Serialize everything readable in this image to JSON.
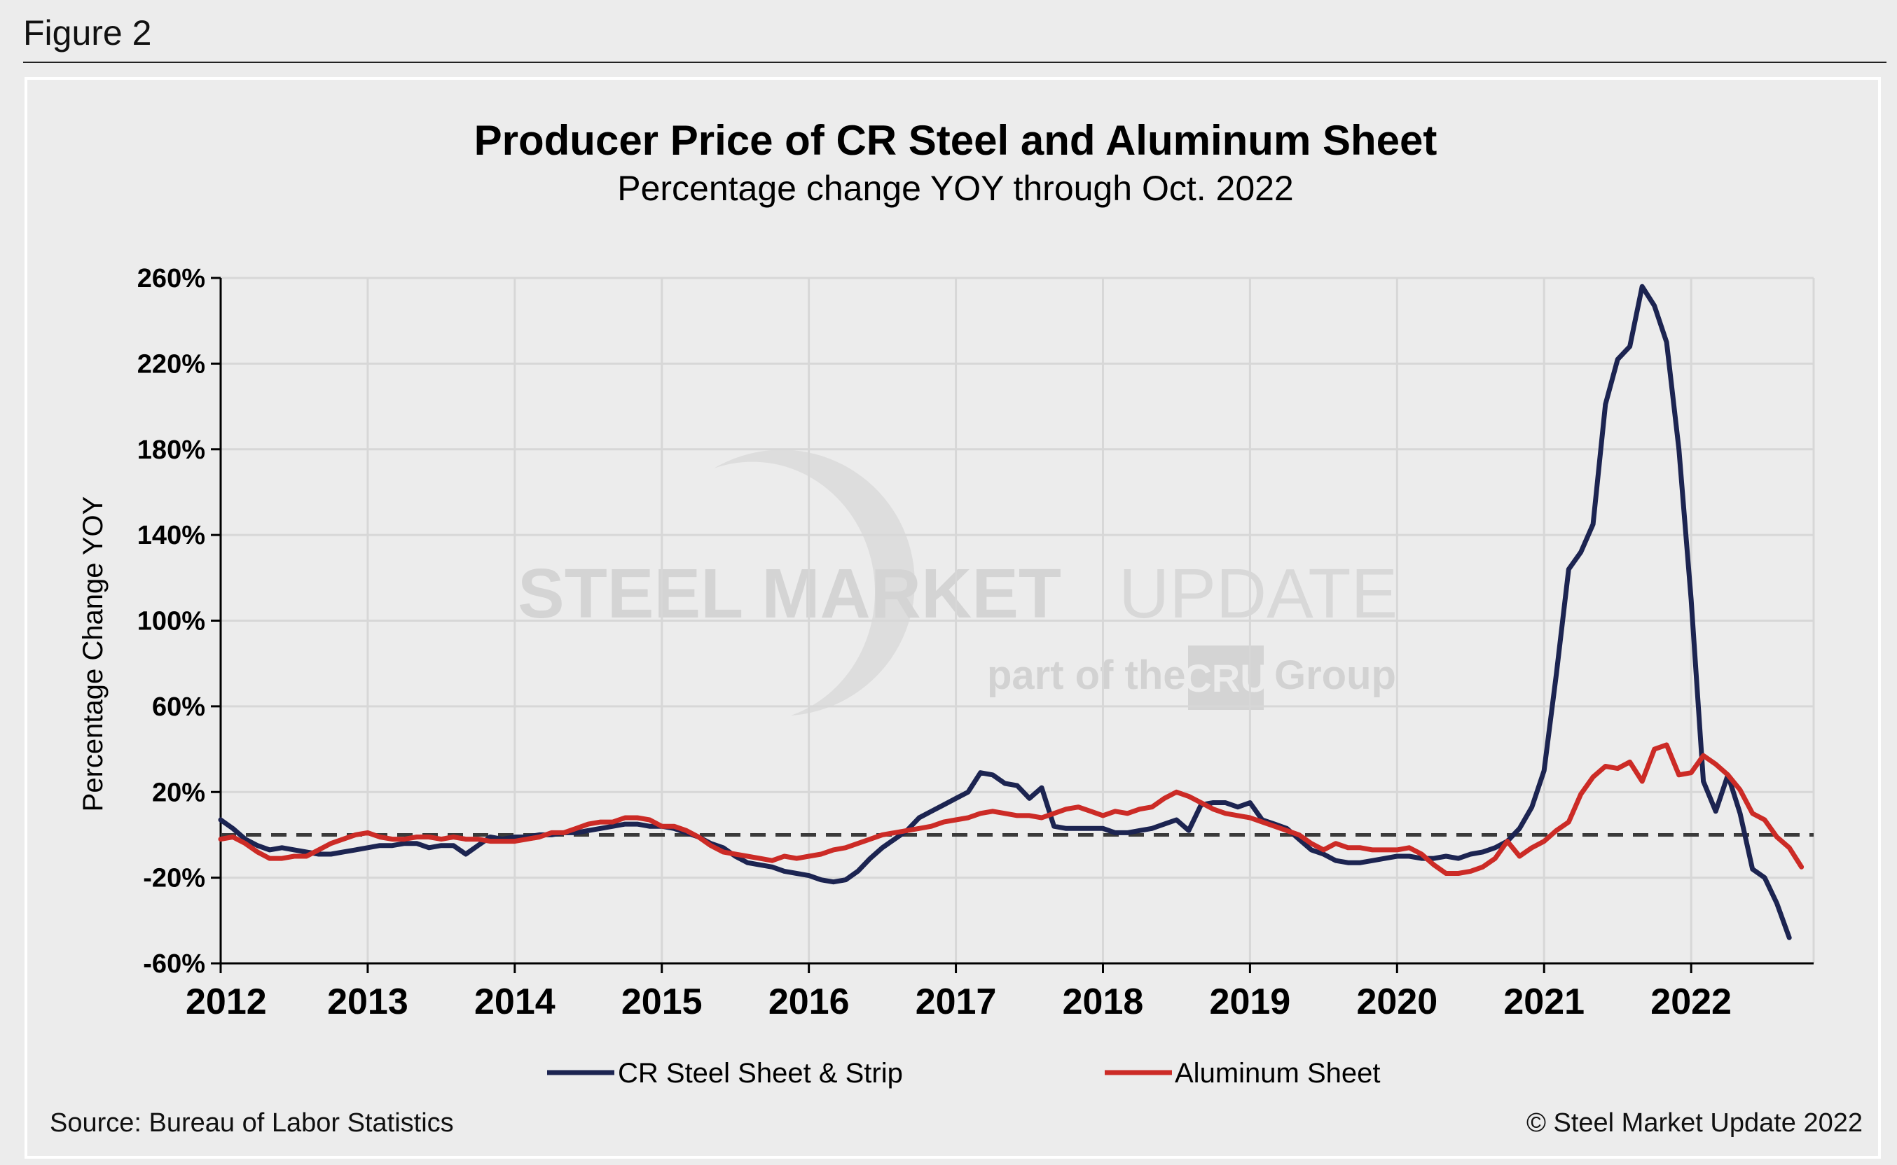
{
  "figure_label": "Figure 2",
  "watermark": {
    "brand_bold": "STEEL MARKET",
    "brand_light": "UPDATE",
    "tagline_pre": "part of the",
    "tagline_logo": "CRU",
    "tagline_post": "Group"
  },
  "source_text": "Source: Bureau of Labor Statistics",
  "copyright_text": "© Steel Market Update 2022",
  "colors": {
    "steel": "#1c2451",
    "aluminum": "#cc2b26",
    "zero_line": "#3a3a3a"
  },
  "chart_data": {
    "type": "line",
    "title": "Producer Price of CR Steel and Aluminum Sheet",
    "subtitle": "Percentage change YOY through Oct. 2022",
    "ylabel": "Percentage Change YOY",
    "xlabel": "",
    "x_tick_labels": [
      "2012",
      "2013",
      "2014",
      "2015",
      "2016",
      "2017",
      "2018",
      "2019",
      "2020",
      "2021",
      "2022"
    ],
    "y_ticks": [
      260,
      220,
      180,
      140,
      100,
      60,
      20,
      -20,
      -60
    ],
    "y_tick_labels": [
      "260%",
      "220%",
      "180%",
      "140%",
      "100%",
      "60%",
      "20%",
      "-20%",
      "-60%"
    ],
    "ylim": [
      -60,
      260
    ],
    "x_range": [
      2012.0,
      2022.833
    ],
    "reference_line": 0,
    "grid": true,
    "legend_position": "bottom",
    "series": [
      {
        "name": "CR Steel Sheet & Strip",
        "points": [
          [
            2012.0,
            7
          ],
          [
            2012.083,
            3
          ],
          [
            2012.167,
            -2
          ],
          [
            2012.25,
            -5
          ],
          [
            2012.333,
            -7
          ],
          [
            2012.417,
            -6
          ],
          [
            2012.5,
            -7
          ],
          [
            2012.583,
            -8
          ],
          [
            2012.667,
            -9
          ],
          [
            2012.75,
            -9
          ],
          [
            2012.833,
            -8
          ],
          [
            2012.917,
            -7
          ],
          [
            2013.0,
            -6
          ],
          [
            2013.083,
            -5
          ],
          [
            2013.167,
            -5
          ],
          [
            2013.25,
            -4
          ],
          [
            2013.333,
            -4
          ],
          [
            2013.417,
            -6
          ],
          [
            2013.5,
            -5
          ],
          [
            2013.583,
            -5
          ],
          [
            2013.667,
            -9
          ],
          [
            2013.75,
            -5
          ],
          [
            2013.833,
            -1
          ],
          [
            2013.917,
            -2
          ],
          [
            2014.0,
            -1
          ],
          [
            2014.083,
            -1
          ],
          [
            2014.167,
            0
          ],
          [
            2014.25,
            0
          ],
          [
            2014.333,
            1
          ],
          [
            2014.417,
            1
          ],
          [
            2014.5,
            2
          ],
          [
            2014.583,
            3
          ],
          [
            2014.667,
            4
          ],
          [
            2014.75,
            5
          ],
          [
            2014.833,
            5
          ],
          [
            2014.917,
            4
          ],
          [
            2015.0,
            4
          ],
          [
            2015.083,
            3
          ],
          [
            2015.167,
            1
          ],
          [
            2015.25,
            -1
          ],
          [
            2015.333,
            -4
          ],
          [
            2015.417,
            -6
          ],
          [
            2015.5,
            -10
          ],
          [
            2015.583,
            -13
          ],
          [
            2015.667,
            -14
          ],
          [
            2015.75,
            -15
          ],
          [
            2015.833,
            -17
          ],
          [
            2015.917,
            -18
          ],
          [
            2016.0,
            -19
          ],
          [
            2016.083,
            -21
          ],
          [
            2016.167,
            -22
          ],
          [
            2016.25,
            -21
          ],
          [
            2016.333,
            -17
          ],
          [
            2016.417,
            -11
          ],
          [
            2016.5,
            -6
          ],
          [
            2016.583,
            -2
          ],
          [
            2016.667,
            2
          ],
          [
            2016.75,
            8
          ],
          [
            2016.833,
            11
          ],
          [
            2016.917,
            14
          ],
          [
            2017.0,
            17
          ],
          [
            2017.083,
            20
          ],
          [
            2017.167,
            29
          ],
          [
            2017.25,
            28
          ],
          [
            2017.333,
            24
          ],
          [
            2017.417,
            23
          ],
          [
            2017.5,
            17
          ],
          [
            2017.583,
            22
          ],
          [
            2017.667,
            4
          ],
          [
            2017.75,
            3
          ],
          [
            2017.833,
            3
          ],
          [
            2017.917,
            3
          ],
          [
            2018.0,
            3
          ],
          [
            2018.083,
            1
          ],
          [
            2018.167,
            1
          ],
          [
            2018.25,
            2
          ],
          [
            2018.333,
            3
          ],
          [
            2018.417,
            5
          ],
          [
            2018.5,
            7
          ],
          [
            2018.583,
            2
          ],
          [
            2018.667,
            14
          ],
          [
            2018.75,
            15
          ],
          [
            2018.833,
            15
          ],
          [
            2018.917,
            13
          ],
          [
            2019.0,
            15
          ],
          [
            2019.083,
            7
          ],
          [
            2019.167,
            5
          ],
          [
            2019.25,
            3
          ],
          [
            2019.333,
            -2
          ],
          [
            2019.417,
            -7
          ],
          [
            2019.5,
            -9
          ],
          [
            2019.583,
            -12
          ],
          [
            2019.667,
            -13
          ],
          [
            2019.75,
            -13
          ],
          [
            2019.833,
            -12
          ],
          [
            2019.917,
            -11
          ],
          [
            2020.0,
            -10
          ],
          [
            2020.083,
            -10
          ],
          [
            2020.167,
            -11
          ],
          [
            2020.25,
            -11
          ],
          [
            2020.333,
            -10
          ],
          [
            2020.417,
            -11
          ],
          [
            2020.5,
            -9
          ],
          [
            2020.583,
            -8
          ],
          [
            2020.667,
            -6
          ],
          [
            2020.75,
            -3
          ],
          [
            2020.833,
            3
          ],
          [
            2020.917,
            13
          ],
          [
            2021.0,
            30
          ],
          [
            2021.083,
            75
          ],
          [
            2021.167,
            124
          ],
          [
            2021.25,
            132
          ],
          [
            2021.333,
            145
          ],
          [
            2021.417,
            201
          ],
          [
            2021.5,
            222
          ],
          [
            2021.583,
            228
          ],
          [
            2021.667,
            256
          ],
          [
            2021.75,
            247
          ],
          [
            2021.833,
            230
          ],
          [
            2021.917,
            180
          ],
          [
            2022.0,
            110
          ],
          [
            2022.083,
            25
          ],
          [
            2022.167,
            11
          ],
          [
            2022.25,
            28
          ],
          [
            2022.333,
            10
          ],
          [
            2022.417,
            -16
          ],
          [
            2022.5,
            -20
          ],
          [
            2022.583,
            -32
          ],
          [
            2022.667,
            -48
          ]
        ]
      },
      {
        "name": "Aluminum Sheet",
        "points": [
          [
            2012.0,
            -2
          ],
          [
            2012.083,
            -1
          ],
          [
            2012.167,
            -4
          ],
          [
            2012.25,
            -8
          ],
          [
            2012.333,
            -11
          ],
          [
            2012.417,
            -11
          ],
          [
            2012.5,
            -10
          ],
          [
            2012.583,
            -10
          ],
          [
            2012.667,
            -7
          ],
          [
            2012.75,
            -4
          ],
          [
            2012.833,
            -2
          ],
          [
            2012.917,
            0
          ],
          [
            2013.0,
            1
          ],
          [
            2013.083,
            -1
          ],
          [
            2013.167,
            -2
          ],
          [
            2013.25,
            -2
          ],
          [
            2013.333,
            -1
          ],
          [
            2013.417,
            -1
          ],
          [
            2013.5,
            -2
          ],
          [
            2013.583,
            -1
          ],
          [
            2013.667,
            -2
          ],
          [
            2013.75,
            -2
          ],
          [
            2013.833,
            -3
          ],
          [
            2013.917,
            -3
          ],
          [
            2014.0,
            -3
          ],
          [
            2014.083,
            -2
          ],
          [
            2014.167,
            -1
          ],
          [
            2014.25,
            1
          ],
          [
            2014.333,
            1
          ],
          [
            2014.417,
            3
          ],
          [
            2014.5,
            5
          ],
          [
            2014.583,
            6
          ],
          [
            2014.667,
            6
          ],
          [
            2014.75,
            8
          ],
          [
            2014.833,
            8
          ],
          [
            2014.917,
            7
          ],
          [
            2015.0,
            4
          ],
          [
            2015.083,
            4
          ],
          [
            2015.167,
            2
          ],
          [
            2015.25,
            -1
          ],
          [
            2015.333,
            -5
          ],
          [
            2015.417,
            -8
          ],
          [
            2015.5,
            -9
          ],
          [
            2015.583,
            -10
          ],
          [
            2015.667,
            -11
          ],
          [
            2015.75,
            -12
          ],
          [
            2015.833,
            -10
          ],
          [
            2015.917,
            -11
          ],
          [
            2016.0,
            -10
          ],
          [
            2016.083,
            -9
          ],
          [
            2016.167,
            -7
          ],
          [
            2016.25,
            -6
          ],
          [
            2016.333,
            -4
          ],
          [
            2016.417,
            -2
          ],
          [
            2016.5,
            0
          ],
          [
            2016.583,
            1
          ],
          [
            2016.667,
            2
          ],
          [
            2016.75,
            3
          ],
          [
            2016.833,
            4
          ],
          [
            2016.917,
            6
          ],
          [
            2017.0,
            7
          ],
          [
            2017.083,
            8
          ],
          [
            2017.167,
            10
          ],
          [
            2017.25,
            11
          ],
          [
            2017.333,
            10
          ],
          [
            2017.417,
            9
          ],
          [
            2017.5,
            9
          ],
          [
            2017.583,
            8
          ],
          [
            2017.667,
            10
          ],
          [
            2017.75,
            12
          ],
          [
            2017.833,
            13
          ],
          [
            2017.917,
            11
          ],
          [
            2018.0,
            9
          ],
          [
            2018.083,
            11
          ],
          [
            2018.167,
            10
          ],
          [
            2018.25,
            12
          ],
          [
            2018.333,
            13
          ],
          [
            2018.417,
            17
          ],
          [
            2018.5,
            20
          ],
          [
            2018.583,
            18
          ],
          [
            2018.667,
            15
          ],
          [
            2018.75,
            12
          ],
          [
            2018.833,
            10
          ],
          [
            2018.917,
            9
          ],
          [
            2019.0,
            8
          ],
          [
            2019.083,
            6
          ],
          [
            2019.167,
            4
          ],
          [
            2019.25,
            2
          ],
          [
            2019.333,
            0
          ],
          [
            2019.417,
            -4
          ],
          [
            2019.5,
            -7
          ],
          [
            2019.583,
            -4
          ],
          [
            2019.667,
            -6
          ],
          [
            2019.75,
            -6
          ],
          [
            2019.833,
            -7
          ],
          [
            2019.917,
            -7
          ],
          [
            2020.0,
            -7
          ],
          [
            2020.083,
            -6
          ],
          [
            2020.167,
            -9
          ],
          [
            2020.25,
            -14
          ],
          [
            2020.333,
            -18
          ],
          [
            2020.417,
            -18
          ],
          [
            2020.5,
            -17
          ],
          [
            2020.583,
            -15
          ],
          [
            2020.667,
            -11
          ],
          [
            2020.75,
            -3
          ],
          [
            2020.833,
            -10
          ],
          [
            2020.917,
            -6
          ],
          [
            2021.0,
            -3
          ],
          [
            2021.083,
            2
          ],
          [
            2021.167,
            6
          ],
          [
            2021.25,
            19
          ],
          [
            2021.333,
            27
          ],
          [
            2021.417,
            32
          ],
          [
            2021.5,
            31
          ],
          [
            2021.583,
            34
          ],
          [
            2021.667,
            25
          ],
          [
            2021.75,
            40
          ],
          [
            2021.833,
            42
          ],
          [
            2021.917,
            28
          ],
          [
            2022.0,
            29
          ],
          [
            2022.083,
            37
          ],
          [
            2022.167,
            33
          ],
          [
            2022.25,
            28
          ],
          [
            2022.333,
            21
          ],
          [
            2022.417,
            10
          ],
          [
            2022.5,
            7
          ],
          [
            2022.583,
            -1
          ],
          [
            2022.667,
            -6
          ],
          [
            2022.75,
            -15
          ]
        ]
      }
    ]
  }
}
